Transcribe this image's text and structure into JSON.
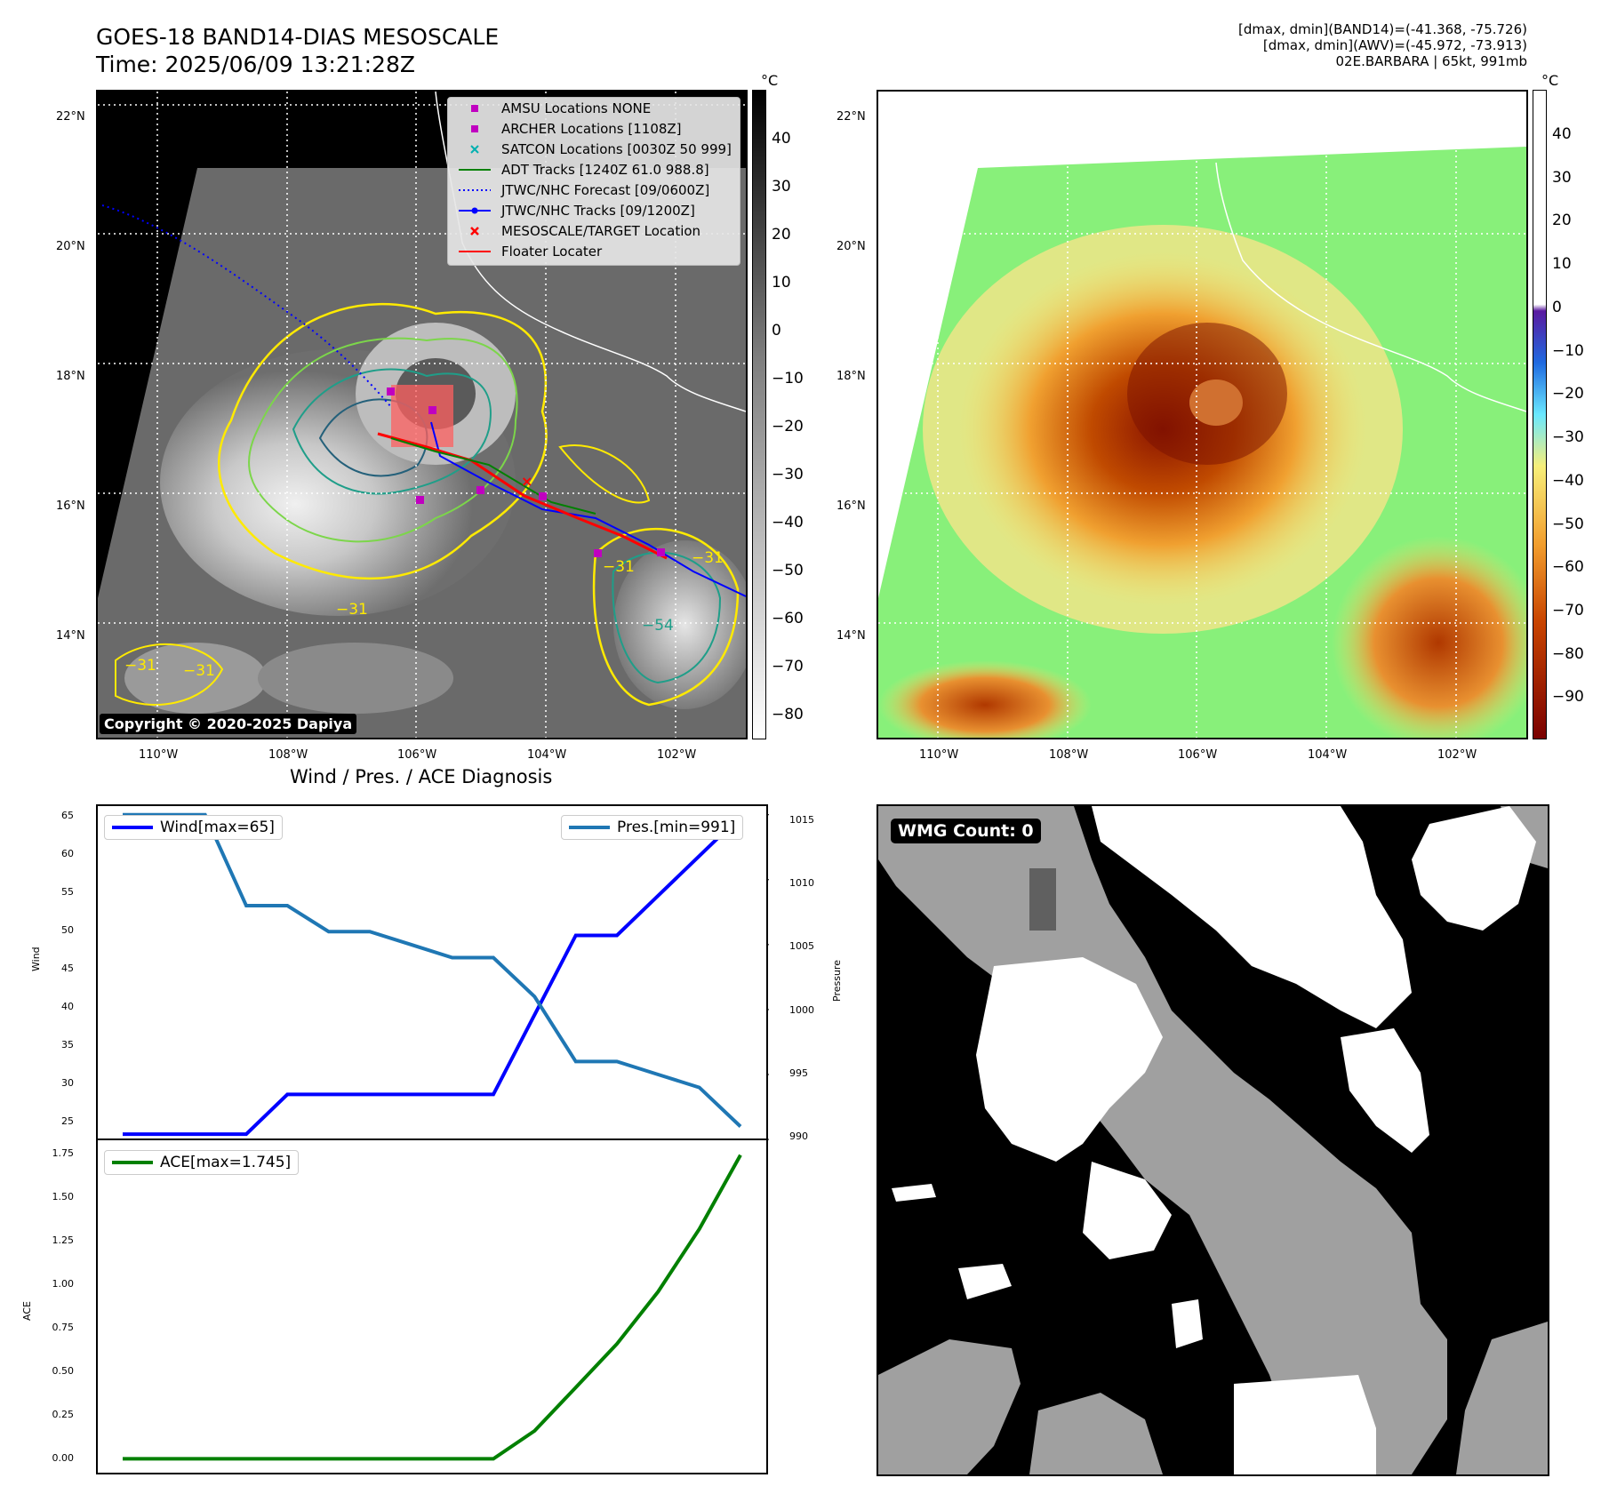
{
  "header": {
    "title_line1": "GOES-18 BAND14-DIAS MESOSCALE",
    "title_line2": "Time: 2025/06/09 13:21:28Z",
    "meta_line1": "[dmax, dmin](BAND14)=(-41.368, -75.726)",
    "meta_line2": "[dmax, dmin](AWV)=(-45.972, -73.913)",
    "meta_line3": "02E.BARBARA | 65kt, 991mb"
  },
  "map": {
    "lat_labels": [
      "22°N",
      "20°N",
      "18°N",
      "16°N",
      "14°N"
    ],
    "lon_labels": [
      "110°W",
      "108°W",
      "106°W",
      "104°W",
      "102°W"
    ],
    "copyright": "Copyright © 2020-2025 Dapiya",
    "contour_label": "−31",
    "contour_label_2": "−54",
    "legend": [
      {
        "label": "AMSU Locations NONE",
        "color": "#c000c0",
        "marker": "square"
      },
      {
        "label": "ARCHER Locations [1108Z]",
        "color": "#c000c0",
        "marker": "square"
      },
      {
        "label": "SATCON Locations [0030Z 50 999]",
        "color": "#00b0b0",
        "marker": "x"
      },
      {
        "label": "ADT Tracks [1240Z 61.0 988.8]",
        "color": "#008000",
        "marker": "line"
      },
      {
        "label": "JTWC/NHC Forecast [09/0600Z]",
        "color": "#0000ff",
        "marker": "dotted"
      },
      {
        "label": "JTWC/NHC Tracks [09/1200Z]",
        "color": "#0000ff",
        "marker": "line-dot"
      },
      {
        "label": "MESOSCALE/TARGET Location",
        "color": "#ff0000",
        "marker": "x"
      },
      {
        "label": "Floater Locater",
        "color": "#ff0000",
        "marker": "line"
      }
    ]
  },
  "colorbar_gray": {
    "unit": "°C",
    "ticks": [
      "40",
      "30",
      "20",
      "10",
      "0",
      "−10",
      "−20",
      "−30",
      "−40",
      "−50",
      "−60",
      "−70",
      "−80"
    ]
  },
  "colorbar_color": {
    "unit": "°C",
    "ticks": [
      "40",
      "30",
      "20",
      "10",
      "0",
      "−10",
      "−20",
      "−30",
      "−40",
      "−50",
      "−60",
      "−70",
      "−80",
      "−90"
    ]
  },
  "wmg": {
    "label": "WMG Count: 0"
  },
  "chart_data": [
    {
      "type": "line",
      "title": "Wind / Pres. / ACE Diagnosis",
      "ylabel": "Wind",
      "ylabel_right": "Pressure",
      "ylim": [
        24,
        66.5
      ],
      "ylim_right": [
        989.8,
        1015.8
      ],
      "yticks": [
        25,
        30,
        35,
        40,
        45,
        50,
        55,
        60,
        65
      ],
      "yticks_right": [
        990,
        995,
        1000,
        1005,
        1010,
        1015
      ],
      "x": [
        0,
        1,
        2,
        3,
        4,
        5,
        6,
        7,
        8,
        9,
        10,
        11,
        12,
        13,
        14,
        15
      ],
      "series": [
        {
          "name": "Wind[max=65]",
          "color": "#0000ff",
          "axis": "left",
          "values": [
            25,
            25,
            25,
            25,
            30,
            30,
            30,
            30,
            30,
            30,
            40,
            50,
            50,
            55,
            60,
            65
          ]
        },
        {
          "name": "Pres.[min=991]",
          "color": "#1f77b4",
          "axis": "right",
          "values": [
            1015,
            1015,
            1015,
            1008,
            1008,
            1006,
            1006,
            1005,
            1004,
            1004,
            1001,
            996,
            996,
            995,
            994,
            991
          ]
        }
      ]
    },
    {
      "type": "line",
      "ylabel": "ACE",
      "ylim": [
        -0.09,
        1.84
      ],
      "yticks": [
        "0.00",
        "0.25",
        "0.50",
        "0.75",
        "1.00",
        "1.25",
        "1.50",
        "1.75"
      ],
      "x": [
        0,
        1,
        2,
        3,
        4,
        5,
        6,
        7,
        8,
        9,
        10,
        11,
        12,
        13,
        14,
        15
      ],
      "series": [
        {
          "name": "ACE[max=1.745]",
          "color": "#008000",
          "values": [
            0,
            0,
            0,
            0,
            0,
            0,
            0,
            0,
            0,
            0,
            0.16,
            0.41,
            0.66,
            0.96,
            1.32,
            1.745
          ]
        }
      ]
    }
  ]
}
